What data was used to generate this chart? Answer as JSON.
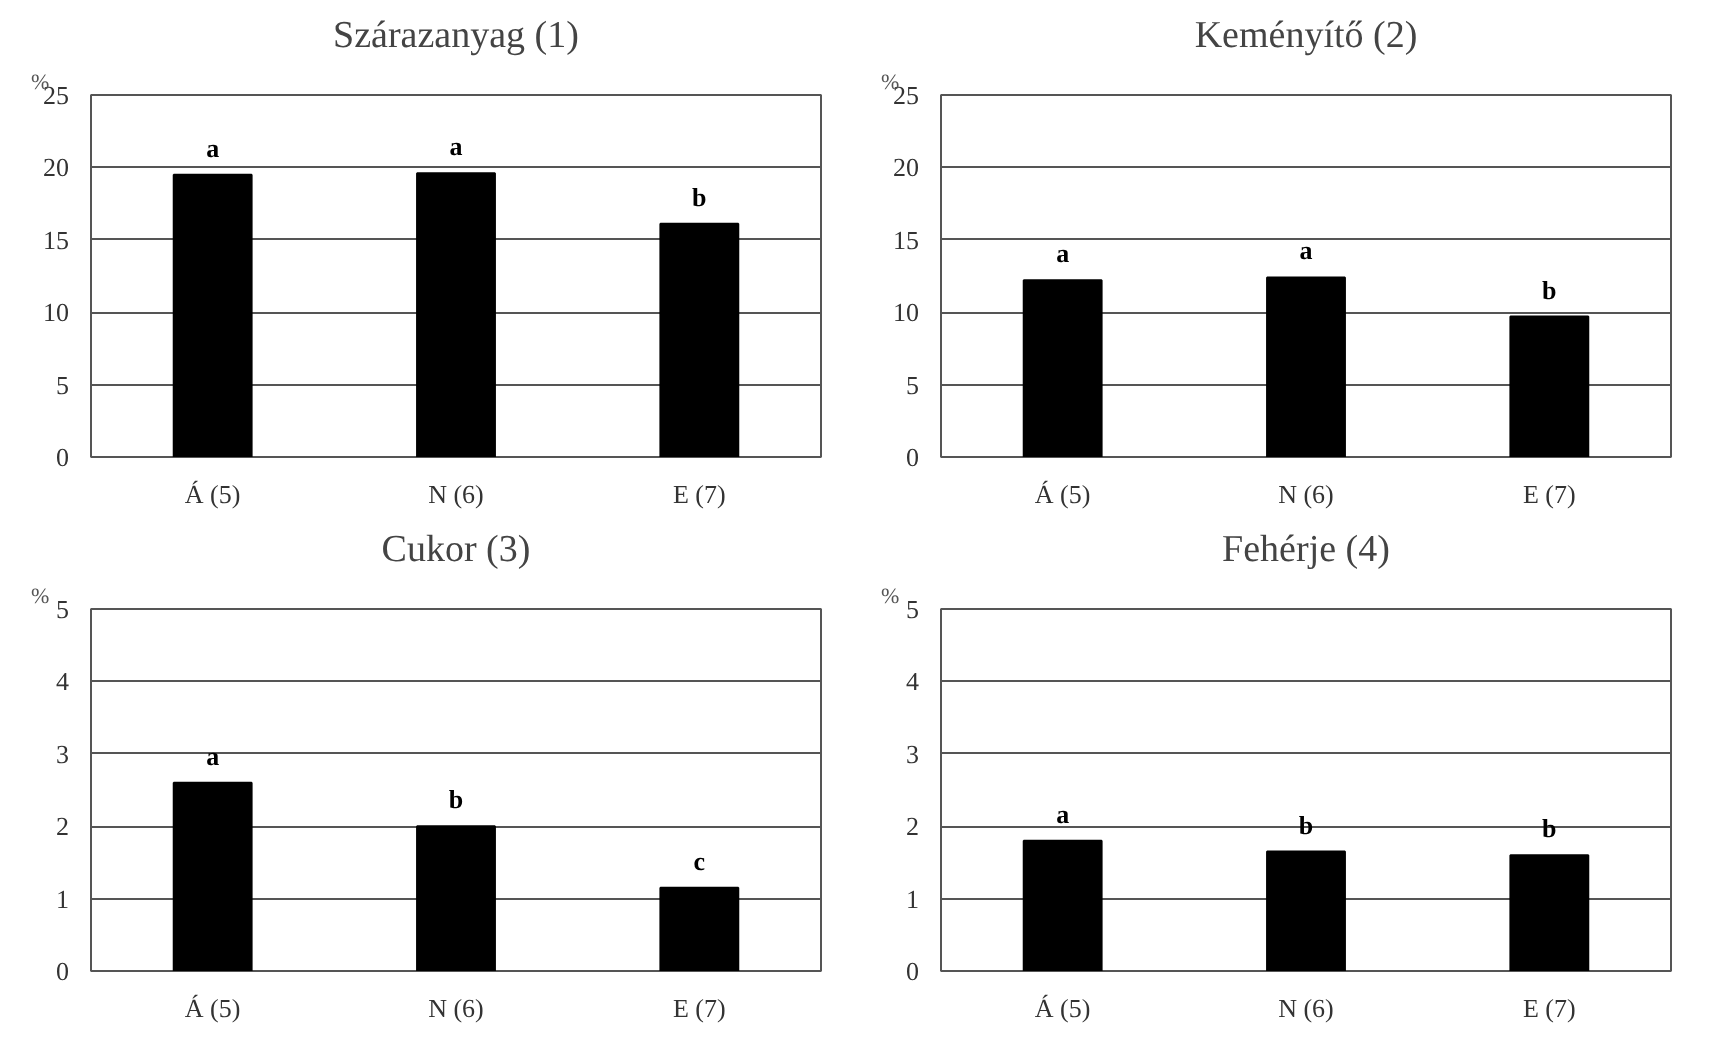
{
  "chart_data": [
    {
      "type": "bar",
      "title": "Szárazanyag (1)",
      "ylabel": "%",
      "categories": [
        "Á (5)",
        "N (6)",
        "E (7)"
      ],
      "values": [
        19.5,
        19.6,
        16.1
      ],
      "color": "#000000",
      "ylim": [
        0,
        25
      ],
      "yticks": [
        0,
        5,
        10,
        15,
        20,
        25
      ],
      "grid": "y",
      "annotations": [
        {
          "text": "a",
          "x": "Á (5)",
          "y": 19.5
        },
        {
          "text": "a",
          "x": "N (6)",
          "y": 19.6
        },
        {
          "text": "b",
          "x": "E (7)",
          "y": 16.1
        }
      ]
    },
    {
      "type": "bar",
      "title": "Keményítő (2)",
      "ylabel": "%",
      "categories": [
        "Á (5)",
        "N (6)",
        "E (7)"
      ],
      "values": [
        12.2,
        12.4,
        9.7
      ],
      "color": "#000000",
      "ylim": [
        0,
        25
      ],
      "yticks": [
        0,
        5,
        10,
        15,
        20,
        25
      ],
      "grid": "y",
      "annotations": [
        {
          "text": "a",
          "x": "Á (5)",
          "y": 12.2
        },
        {
          "text": "a",
          "x": "N (6)",
          "y": 12.4
        },
        {
          "text": "b",
          "x": "E (7)",
          "y": 9.7
        }
      ]
    },
    {
      "type": "bar",
      "title": "Cukor (3)",
      "ylabel": "%",
      "categories": [
        "Á (5)",
        "N (6)",
        "E (7)"
      ],
      "values": [
        2.6,
        2.0,
        1.15
      ],
      "color": "#000000",
      "ylim": [
        0,
        5
      ],
      "yticks": [
        0,
        1,
        2,
        3,
        4,
        5
      ],
      "grid": "y",
      "annotations": [
        {
          "text": "a",
          "x": "Á (5)",
          "y": 2.6
        },
        {
          "text": "b",
          "x": "N (6)",
          "y": 2.0
        },
        {
          "text": "c",
          "x": "E (7)",
          "y": 1.15
        }
      ]
    },
    {
      "type": "bar",
      "title": "Fehérje (4)",
      "ylabel": "%",
      "categories": [
        "Á (5)",
        "N (6)",
        "E (7)"
      ],
      "values": [
        1.8,
        1.65,
        1.6
      ],
      "color": "#000000",
      "ylim": [
        0,
        5
      ],
      "yticks": [
        0,
        1,
        2,
        3,
        4,
        5
      ],
      "grid": "y",
      "annotations": [
        {
          "text": "a",
          "x": "Á (5)",
          "y": 1.8
        },
        {
          "text": "b",
          "x": "N (6)",
          "y": 1.65
        },
        {
          "text": "b",
          "x": "E (7)",
          "y": 1.6
        }
      ]
    }
  ]
}
